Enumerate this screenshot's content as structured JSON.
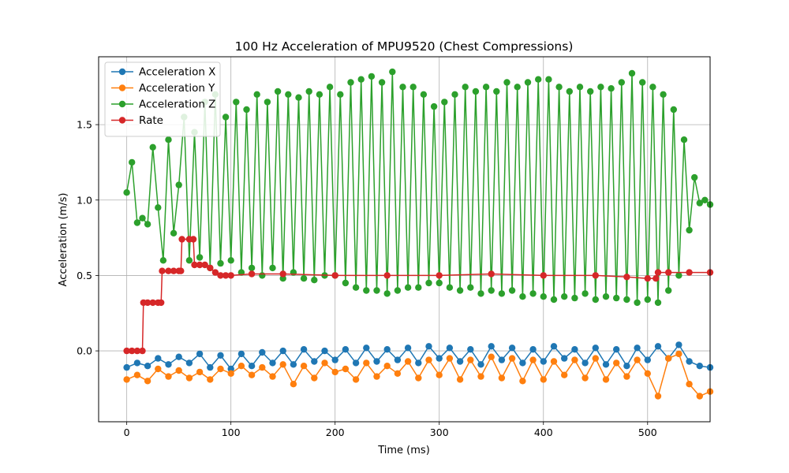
{
  "chart_data": {
    "type": "line",
    "title": "100 Hz Acceleration of MPU9520 (Chest Compressions)",
    "xlabel": "Time (ms)",
    "ylabel": "Acceleration (m/s)",
    "xlim": [
      -27,
      560
    ],
    "ylim": [
      -0.47,
      1.95
    ],
    "xticks": [
      0,
      100,
      200,
      300,
      400,
      500
    ],
    "yticks": [
      0.0,
      0.5,
      1.0,
      1.5
    ],
    "xtick_labels": [
      "0",
      "100",
      "200",
      "300",
      "400",
      "500"
    ],
    "ytick_labels": [
      "0.0",
      "0.5",
      "1.0",
      "1.5"
    ],
    "grid": true,
    "legend_position": "top-left",
    "markers": true,
    "series": [
      {
        "name": "Acceleration X",
        "color": "#1f77b4",
        "x": [
          0,
          10,
          20,
          30,
          40,
          50,
          60,
          70,
          80,
          90,
          100,
          110,
          120,
          130,
          140,
          150,
          160,
          170,
          180,
          190,
          200,
          210,
          220,
          230,
          240,
          250,
          260,
          270,
          280,
          290,
          300,
          310,
          320,
          330,
          340,
          350,
          360,
          370,
          380,
          390,
          400,
          410,
          420,
          430,
          440,
          450,
          460,
          470,
          480,
          490,
          500,
          510,
          520,
          530,
          540,
          550,
          560
        ],
        "values": [
          -0.11,
          -0.08,
          -0.1,
          -0.05,
          -0.09,
          -0.04,
          -0.08,
          -0.02,
          -0.11,
          -0.03,
          -0.12,
          -0.02,
          -0.1,
          -0.01,
          -0.08,
          0.0,
          -0.09,
          0.01,
          -0.07,
          0.0,
          -0.06,
          0.01,
          -0.08,
          0.02,
          -0.07,
          0.01,
          -0.06,
          0.02,
          -0.08,
          0.03,
          -0.05,
          0.02,
          -0.07,
          0.01,
          -0.09,
          0.03,
          -0.06,
          0.02,
          -0.08,
          0.01,
          -0.07,
          0.03,
          -0.05,
          0.01,
          -0.08,
          0.02,
          -0.09,
          0.01,
          -0.1,
          0.02,
          -0.06,
          0.03,
          -0.05,
          0.04,
          -0.07,
          -0.1,
          -0.11
        ]
      },
      {
        "name": "Acceleration Y",
        "color": "#ff7f0e",
        "x": [
          0,
          10,
          20,
          30,
          40,
          50,
          60,
          70,
          80,
          90,
          100,
          110,
          120,
          130,
          140,
          150,
          160,
          170,
          180,
          190,
          200,
          210,
          220,
          230,
          240,
          250,
          260,
          270,
          280,
          290,
          300,
          310,
          320,
          330,
          340,
          350,
          360,
          370,
          380,
          390,
          400,
          410,
          420,
          430,
          440,
          450,
          460,
          470,
          480,
          490,
          500,
          510,
          520,
          530,
          540,
          550,
          560
        ],
        "values": [
          -0.19,
          -0.16,
          -0.2,
          -0.12,
          -0.17,
          -0.13,
          -0.18,
          -0.14,
          -0.19,
          -0.12,
          -0.15,
          -0.1,
          -0.16,
          -0.11,
          -0.17,
          -0.09,
          -0.22,
          -0.1,
          -0.18,
          -0.08,
          -0.14,
          -0.12,
          -0.19,
          -0.08,
          -0.17,
          -0.1,
          -0.15,
          -0.07,
          -0.18,
          -0.06,
          -0.16,
          -0.05,
          -0.19,
          -0.06,
          -0.17,
          -0.04,
          -0.18,
          -0.05,
          -0.2,
          -0.06,
          -0.19,
          -0.07,
          -0.16,
          -0.06,
          -0.18,
          -0.05,
          -0.19,
          -0.08,
          -0.17,
          -0.06,
          -0.15,
          -0.3,
          -0.05,
          -0.02,
          -0.22,
          -0.3,
          -0.27
        ]
      },
      {
        "name": "Acceleration Z",
        "color": "#2ca02c",
        "x": [
          0,
          5,
          10,
          15,
          20,
          25,
          30,
          35,
          40,
          45,
          50,
          55,
          60,
          65,
          70,
          75,
          80,
          85,
          90,
          95,
          100,
          105,
          110,
          115,
          120,
          125,
          130,
          135,
          140,
          145,
          150,
          155,
          160,
          165,
          170,
          175,
          180,
          185,
          190,
          195,
          200,
          205,
          210,
          215,
          220,
          225,
          230,
          235,
          240,
          245,
          250,
          255,
          260,
          265,
          270,
          275,
          280,
          285,
          290,
          295,
          300,
          305,
          310,
          315,
          320,
          325,
          330,
          335,
          340,
          345,
          350,
          355,
          360,
          365,
          370,
          375,
          380,
          385,
          390,
          395,
          400,
          405,
          410,
          415,
          420,
          425,
          430,
          435,
          440,
          445,
          450,
          455,
          460,
          465,
          470,
          475,
          480,
          485,
          490,
          495,
          500,
          505,
          510,
          515,
          520,
          525,
          530,
          535,
          540,
          545,
          550,
          555,
          560
        ],
        "values": [
          1.05,
          1.25,
          0.85,
          0.88,
          0.84,
          1.35,
          0.95,
          0.6,
          1.4,
          0.78,
          1.1,
          1.55,
          0.6,
          1.45,
          0.62,
          1.65,
          0.55,
          1.7,
          0.58,
          1.55,
          0.6,
          1.65,
          0.52,
          1.6,
          0.55,
          1.7,
          0.5,
          1.65,
          0.55,
          1.72,
          0.48,
          1.7,
          0.52,
          1.68,
          0.48,
          1.72,
          0.47,
          1.7,
          0.5,
          1.75,
          0.5,
          1.7,
          0.45,
          1.78,
          0.42,
          1.8,
          0.4,
          1.82,
          0.4,
          1.78,
          0.38,
          1.85,
          0.4,
          1.75,
          0.42,
          1.75,
          0.42,
          1.7,
          0.45,
          1.62,
          0.45,
          1.65,
          0.42,
          1.7,
          0.4,
          1.75,
          0.42,
          1.72,
          0.38,
          1.75,
          0.4,
          1.72,
          0.38,
          1.78,
          0.4,
          1.75,
          0.36,
          1.78,
          0.38,
          1.8,
          0.36,
          1.8,
          0.34,
          1.75,
          0.36,
          1.72,
          0.35,
          1.75,
          0.38,
          1.72,
          0.34,
          1.75,
          0.36,
          1.74,
          0.35,
          1.78,
          0.34,
          1.84,
          0.32,
          1.78,
          0.34,
          1.75,
          0.32,
          1.7,
          0.4,
          1.6,
          0.5,
          1.4,
          0.8,
          1.15,
          0.98,
          1.0,
          0.97
        ]
      },
      {
        "name": "Rate",
        "color": "#d62728",
        "x": [
          0,
          5,
          10,
          15,
          16,
          20,
          25,
          30,
          33,
          34,
          40,
          45,
          50,
          52,
          53,
          60,
          64,
          65,
          70,
          75,
          80,
          85,
          90,
          95,
          100,
          120,
          150,
          200,
          250,
          300,
          350,
          400,
          450,
          480,
          500,
          508,
          510,
          520,
          540,
          560
        ],
        "values": [
          0.0,
          0.0,
          0.0,
          0.0,
          0.32,
          0.32,
          0.32,
          0.32,
          0.32,
          0.53,
          0.53,
          0.53,
          0.53,
          0.53,
          0.74,
          0.74,
          0.74,
          0.57,
          0.57,
          0.57,
          0.55,
          0.52,
          0.5,
          0.5,
          0.5,
          0.51,
          0.51,
          0.5,
          0.5,
          0.5,
          0.51,
          0.5,
          0.5,
          0.49,
          0.48,
          0.48,
          0.52,
          0.52,
          0.52,
          0.52
        ]
      }
    ]
  }
}
